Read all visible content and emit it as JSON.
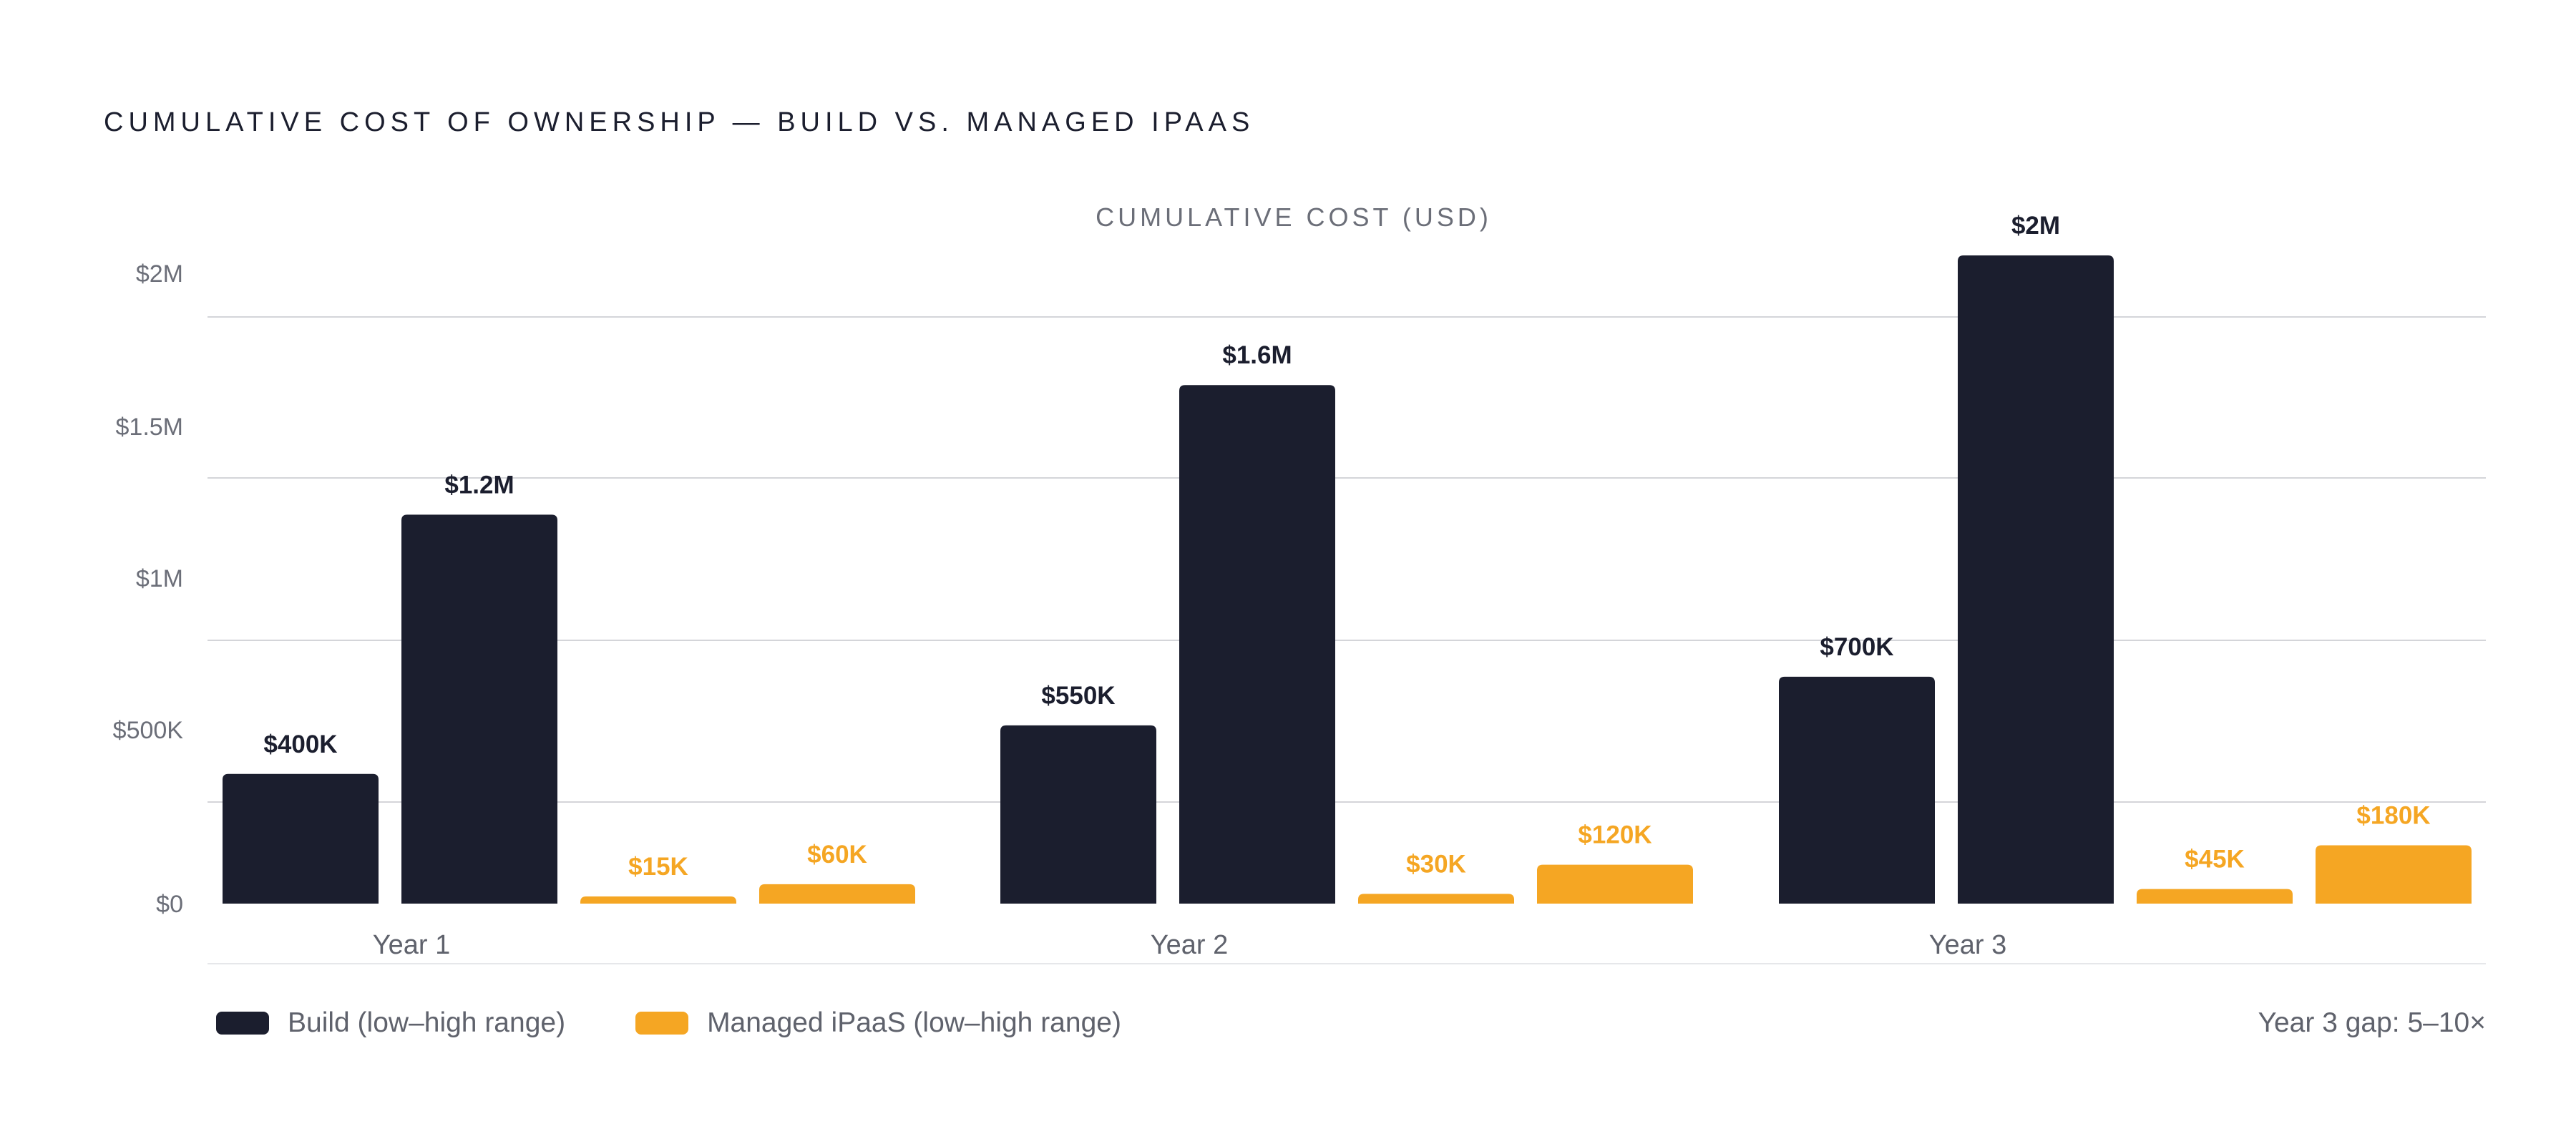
{
  "title": "CUMULATIVE COST OF OWNERSHIP — BUILD VS. MANAGED IPAAS",
  "footnote": "Year 3 gap: 5–10×",
  "colors": {
    "build": "#1b1e2e",
    "managed": "#f5a623",
    "grid": "#d4d5d9",
    "tick_text": "#6b6e78"
  },
  "chart_data": {
    "type": "bar",
    "ylabel": "CUMULATIVE COST (USD)",
    "xlabel": "",
    "ylim": [
      0,
      2000000
    ],
    "grid": true,
    "legend_placement": "bottom-left",
    "y_ticks": [
      {
        "value": 0,
        "label": "$0"
      },
      {
        "value": 500000,
        "label": "$500K"
      },
      {
        "value": 1000000,
        "label": "$1M"
      },
      {
        "value": 1500000,
        "label": "$1.5M"
      },
      {
        "value": 2000000,
        "label": "$2M"
      }
    ],
    "categories": [
      "Year 1",
      "Year 2",
      "Year 3"
    ],
    "series": [
      {
        "key": "build_low",
        "group": "build",
        "values": [
          400000,
          550000,
          700000
        ],
        "labels": [
          "$400K",
          "$550K",
          "$700K"
        ]
      },
      {
        "key": "build_high",
        "group": "build",
        "values": [
          1200000,
          1600000,
          2000000
        ],
        "labels": [
          "$1.2M",
          "$1.6M",
          "$2M"
        ]
      },
      {
        "key": "managed_low",
        "group": "managed",
        "values": [
          15000,
          30000,
          45000
        ],
        "labels": [
          "$15K",
          "$30K",
          "$45K"
        ]
      },
      {
        "key": "managed_high",
        "group": "managed",
        "values": [
          60000,
          120000,
          180000
        ],
        "labels": [
          "$60K",
          "$120K",
          "$180K"
        ]
      }
    ],
    "legend": [
      {
        "group": "build",
        "label": "Build (low–high range)"
      },
      {
        "group": "managed",
        "label": "Managed iPaaS (low–high range)"
      }
    ]
  }
}
